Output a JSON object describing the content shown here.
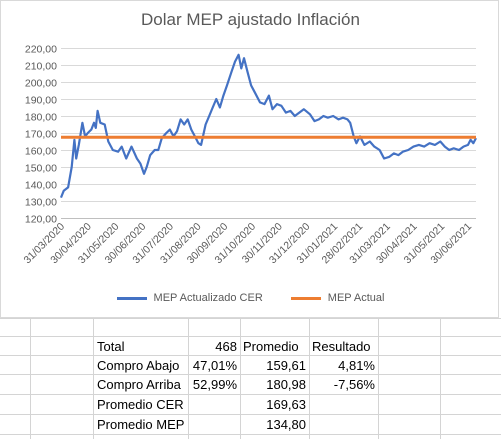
{
  "chart_data": {
    "type": "line",
    "title": "Dolar MEP ajustado Inflación",
    "ylim": [
      120,
      220
    ],
    "y_ticks": [
      "120,00",
      "130,00",
      "140,00",
      "150,00",
      "160,00",
      "170,00",
      "180,00",
      "190,00",
      "200,00",
      "210,00",
      "220,00"
    ],
    "x_ticks": [
      "31/03/2020",
      "30/04/2020",
      "31/05/2020",
      "30/06/2020",
      "31/07/2020",
      "31/08/2020",
      "30/09/2020",
      "31/10/2020",
      "30/11/2020",
      "31/12/2020",
      "31/01/2021",
      "28/02/2021",
      "31/03/2021",
      "30/04/2021",
      "31/05/2021",
      "30/06/2021"
    ],
    "x_range": [
      "2020-03-31",
      "2021-07-09"
    ],
    "grid": "horizontal",
    "legend_position": "bottom",
    "series": [
      {
        "name": "MEP Actualizado CER",
        "color": "#4472c4",
        "points": [
          [
            "2020-03-31",
            132
          ],
          [
            "2020-04-03",
            136
          ],
          [
            "2020-04-08",
            138
          ],
          [
            "2020-04-12",
            150
          ],
          [
            "2020-04-15",
            166
          ],
          [
            "2020-04-17",
            155
          ],
          [
            "2020-04-20",
            163
          ],
          [
            "2020-04-24",
            176
          ],
          [
            "2020-04-27",
            168
          ],
          [
            "2020-04-30",
            170
          ],
          [
            "2020-05-04",
            172
          ],
          [
            "2020-05-07",
            176
          ],
          [
            "2020-05-09",
            173
          ],
          [
            "2020-05-11",
            183
          ],
          [
            "2020-05-14",
            176
          ],
          [
            "2020-05-19",
            175
          ],
          [
            "2020-05-23",
            165
          ],
          [
            "2020-05-28",
            160
          ],
          [
            "2020-06-03",
            159
          ],
          [
            "2020-06-07",
            162
          ],
          [
            "2020-06-12",
            155
          ],
          [
            "2020-06-18",
            162
          ],
          [
            "2020-06-24",
            155
          ],
          [
            "2020-06-28",
            152
          ],
          [
            "2020-07-02",
            146
          ],
          [
            "2020-07-05",
            150
          ],
          [
            "2020-07-09",
            157
          ],
          [
            "2020-07-14",
            160
          ],
          [
            "2020-07-18",
            160
          ],
          [
            "2020-07-22",
            167
          ],
          [
            "2020-07-27",
            170
          ],
          [
            "2020-07-31",
            172
          ],
          [
            "2020-08-04",
            168
          ],
          [
            "2020-08-08",
            171
          ],
          [
            "2020-08-12",
            178
          ],
          [
            "2020-08-16",
            175
          ],
          [
            "2020-08-20",
            178
          ],
          [
            "2020-08-24",
            172
          ],
          [
            "2020-08-28",
            168
          ],
          [
            "2020-09-01",
            164
          ],
          [
            "2020-09-04",
            163
          ],
          [
            "2020-09-09",
            175
          ],
          [
            "2020-09-13",
            180
          ],
          [
            "2020-09-17",
            185
          ],
          [
            "2020-09-21",
            190
          ],
          [
            "2020-09-25",
            185
          ],
          [
            "2020-09-29",
            192
          ],
          [
            "2020-10-03",
            198
          ],
          [
            "2020-10-08",
            206
          ],
          [
            "2020-10-12",
            212
          ],
          [
            "2020-10-16",
            216
          ],
          [
            "2020-10-19",
            208
          ],
          [
            "2020-10-22",
            214
          ],
          [
            "2020-10-26",
            206
          ],
          [
            "2020-10-30",
            198
          ],
          [
            "2020-11-03",
            194
          ],
          [
            "2020-11-09",
            188
          ],
          [
            "2020-11-14",
            187
          ],
          [
            "2020-11-19",
            192
          ],
          [
            "2020-11-23",
            184
          ],
          [
            "2020-11-28",
            187
          ],
          [
            "2020-12-03",
            186
          ],
          [
            "2020-12-08",
            182
          ],
          [
            "2020-12-13",
            183
          ],
          [
            "2020-12-18",
            180
          ],
          [
            "2020-12-23",
            182
          ],
          [
            "2020-12-28",
            184
          ],
          [
            "2021-01-04",
            181
          ],
          [
            "2021-01-09",
            177
          ],
          [
            "2021-01-14",
            178
          ],
          [
            "2021-01-19",
            180
          ],
          [
            "2021-01-24",
            179
          ],
          [
            "2021-01-30",
            180
          ],
          [
            "2021-02-05",
            178
          ],
          [
            "2021-02-10",
            179
          ],
          [
            "2021-02-15",
            178
          ],
          [
            "2021-02-18",
            176
          ],
          [
            "2021-02-22",
            168
          ],
          [
            "2021-02-25",
            164
          ],
          [
            "2021-03-01",
            168
          ],
          [
            "2021-03-06",
            163
          ],
          [
            "2021-03-12",
            165
          ],
          [
            "2021-03-17",
            162
          ],
          [
            "2021-03-23",
            160
          ],
          [
            "2021-03-28",
            155
          ],
          [
            "2021-04-03",
            156
          ],
          [
            "2021-04-08",
            158
          ],
          [
            "2021-04-13",
            157
          ],
          [
            "2021-04-18",
            159
          ],
          [
            "2021-04-24",
            160
          ],
          [
            "2021-04-30",
            162
          ],
          [
            "2021-05-06",
            163
          ],
          [
            "2021-05-12",
            162
          ],
          [
            "2021-05-18",
            164
          ],
          [
            "2021-05-24",
            163
          ],
          [
            "2021-05-30",
            165
          ],
          [
            "2021-06-04",
            162
          ],
          [
            "2021-06-09",
            160
          ],
          [
            "2021-06-14",
            161
          ],
          [
            "2021-06-20",
            160
          ],
          [
            "2021-06-25",
            162
          ],
          [
            "2021-06-30",
            163
          ],
          [
            "2021-07-03",
            166
          ],
          [
            "2021-07-06",
            164
          ],
          [
            "2021-07-09",
            167
          ]
        ]
      },
      {
        "name": "MEP Actual",
        "color": "#ed7d31",
        "points": [
          [
            "2020-03-31",
            167.5
          ],
          [
            "2021-07-09",
            167.5
          ]
        ]
      }
    ]
  },
  "table": {
    "rows": [
      {
        "label": "Total",
        "c1": "",
        "c2": "468",
        "c3": "Promedio",
        "c4": "Resultado"
      },
      {
        "label": "Compro Abajo",
        "c1": "47,01%",
        "c2": "",
        "c3": "159,61",
        "c4": "4,81%"
      },
      {
        "label": "Compro Arriba",
        "c1": "52,99%",
        "c2": "",
        "c3": "180,98",
        "c4": "-7,56%"
      },
      {
        "label": "Promedio CER",
        "c1": "",
        "c2": "",
        "c3": "169,63",
        "c4": ""
      },
      {
        "label": "Promedio MEP",
        "c1": "",
        "c2": "",
        "c3": "134,80",
        "c4": ""
      }
    ]
  }
}
